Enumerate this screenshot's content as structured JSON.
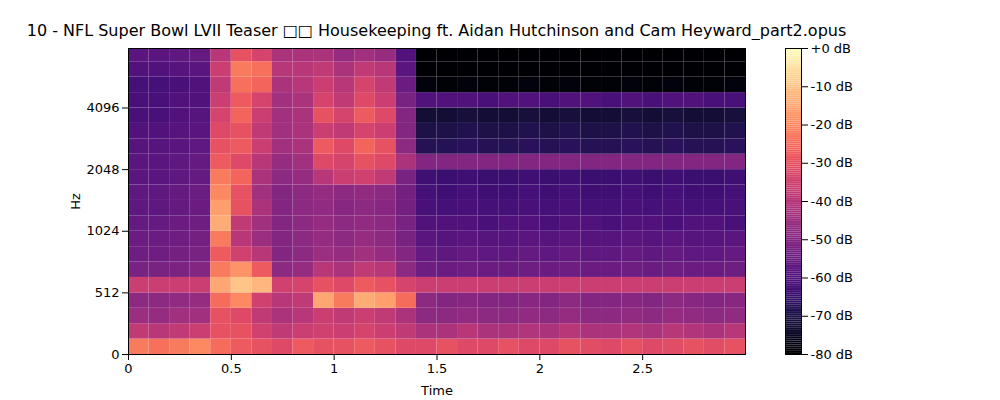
{
  "chart_data": {
    "type": "heatmap",
    "title": "10 - NFL Super Bowl LVII Teaser □□ Housekeeping ft. Aidan Hutchinson and Cam Heyward_part2.opus",
    "x_label": "Time",
    "y_label": "Hz",
    "xlim": [
      0,
      3
    ],
    "xticks": [
      0,
      0.5,
      1,
      1.5,
      2,
      2.5
    ],
    "ylim": [
      0,
      8000
    ],
    "yticks": [
      0,
      512,
      1024,
      2048,
      4096
    ],
    "color": "magma",
    "time_bins": [
      0,
      0.1,
      0.2,
      0.3,
      0.4,
      0.5,
      0.6,
      0.7,
      0.8,
      0.9,
      1.0,
      1.1,
      1.2,
      1.3,
      1.4,
      1.5,
      1.6,
      1.7,
      1.8,
      1.9,
      2.0,
      2.1,
      2.2,
      2.3,
      2.4,
      2.5,
      2.6,
      2.7,
      2.8,
      2.9,
      3.0
    ],
    "freq_bins": [
      0,
      128,
      256,
      384,
      512,
      609,
      724,
      861,
      1024,
      1218,
      1448,
      1722,
      2048,
      2435,
      2896,
      3444,
      4096,
      4871,
      5793,
      6889,
      8000
    ],
    "z": [
      [
        -22,
        -24,
        -22,
        -20,
        -25,
        -28,
        -30,
        -32,
        -28,
        -30,
        -30,
        -28,
        -30,
        -32,
        -32,
        -30,
        -32,
        -32,
        -30,
        -32,
        -32,
        -30,
        -31,
        -32,
        -30,
        -32,
        -31,
        -30,
        -31,
        -30
      ],
      [
        -38,
        -40,
        -38,
        -36,
        -30,
        -30,
        -35,
        -38,
        -36,
        -35,
        -36,
        -34,
        -36,
        -38,
        -42,
        -42,
        -40,
        -42,
        -42,
        -41,
        -42,
        -40,
        -42,
        -42,
        -41,
        -42,
        -40,
        -41,
        -42,
        -40
      ],
      [
        -45,
        -46,
        -44,
        -44,
        -30,
        -32,
        -38,
        -42,
        -40,
        -36,
        -38,
        -36,
        -38,
        -42,
        -48,
        -48,
        -47,
        -48,
        -48,
        -47,
        -48,
        -46,
        -48,
        -48,
        -47,
        -48,
        -46,
        -47,
        -48,
        -47
      ],
      [
        -48,
        -48,
        -47,
        -46,
        -25,
        -20,
        -35,
        -40,
        -38,
        -15,
        -22,
        -14,
        -16,
        -25,
        -48,
        -50,
        -49,
        -50,
        -50,
        -49,
        -50,
        -48,
        -50,
        -50,
        -49,
        -50,
        -48,
        -49,
        -50,
        -49
      ],
      [
        -36,
        -36,
        -36,
        -36,
        -15,
        -10,
        -12,
        -35,
        -34,
        -30,
        -32,
        -28,
        -30,
        -34,
        -36,
        -36,
        -36,
        -36,
        -36,
        -36,
        -36,
        -36,
        -36,
        -36,
        -36,
        -36,
        -36,
        -36,
        -36,
        -36
      ],
      [
        -52,
        -52,
        -51,
        -50,
        -22,
        -18,
        -28,
        -48,
        -46,
        -40,
        -42,
        -38,
        -40,
        -48,
        -54,
        -55,
        -54,
        -55,
        -55,
        -54,
        -55,
        -54,
        -55,
        -55,
        -54,
        -55,
        -54,
        -55,
        -55,
        -54
      ],
      [
        -54,
        -54,
        -53,
        -52,
        -28,
        -35,
        -40,
        -50,
        -48,
        -45,
        -46,
        -44,
        -46,
        -50,
        -56,
        -57,
        -56,
        -57,
        -57,
        -56,
        -57,
        -56,
        -57,
        -57,
        -56,
        -57,
        -56,
        -57,
        -57,
        -56
      ],
      [
        -55,
        -55,
        -54,
        -53,
        -22,
        -40,
        -45,
        -50,
        -48,
        -46,
        -48,
        -46,
        -48,
        -52,
        -58,
        -59,
        -58,
        -59,
        -59,
        -58,
        -59,
        -58,
        -59,
        -59,
        -58,
        -59,
        -58,
        -59,
        -59,
        -58
      ],
      [
        -56,
        -56,
        -55,
        -54,
        -14,
        -38,
        -44,
        -50,
        -48,
        -46,
        -48,
        -47,
        -48,
        -52,
        -60,
        -60,
        -60,
        -61,
        -60,
        -60,
        -61,
        -60,
        -60,
        -61,
        -60,
        -60,
        -61,
        -60,
        -60,
        -61
      ],
      [
        -57,
        -57,
        -56,
        -55,
        -16,
        -30,
        -42,
        -50,
        -48,
        -47,
        -49,
        -48,
        -49,
        -53,
        -61,
        -62,
        -61,
        -62,
        -62,
        -61,
        -62,
        -61,
        -62,
        -62,
        -61,
        -62,
        -61,
        -62,
        -62,
        -61
      ],
      [
        -57,
        -57,
        -56,
        -55,
        -20,
        -30,
        -44,
        -50,
        -48,
        -46,
        -48,
        -47,
        -48,
        -53,
        -62,
        -63,
        -62,
        -63,
        -63,
        -62,
        -63,
        -62,
        -63,
        -63,
        -62,
        -63,
        -62,
        -63,
        -63,
        -62
      ],
      [
        -58,
        -58,
        -57,
        -56,
        -22,
        -26,
        -42,
        -48,
        -46,
        -40,
        -36,
        -35,
        -38,
        -52,
        -63,
        -64,
        -63,
        -64,
        -64,
        -63,
        -64,
        -63,
        -64,
        -64,
        -63,
        -64,
        -63,
        -64,
        -64,
        -63
      ],
      [
        -58,
        -58,
        -57,
        -56,
        -28,
        -32,
        -40,
        -46,
        -44,
        -32,
        -34,
        -30,
        -32,
        -42,
        -50,
        -50,
        -50,
        -50,
        -50,
        -50,
        -50,
        -50,
        -50,
        -50,
        -50,
        -50,
        -50,
        -50,
        -50,
        -50
      ],
      [
        -59,
        -59,
        -58,
        -57,
        -30,
        -28,
        -36,
        -44,
        -42,
        -28,
        -32,
        -26,
        -30,
        -48,
        -68,
        -68,
        -67,
        -68,
        -68,
        -67,
        -68,
        -67,
        -68,
        -68,
        -67,
        -68,
        -67,
        -68,
        -68,
        -67
      ],
      [
        -60,
        -60,
        -59,
        -58,
        -32,
        -30,
        -38,
        -44,
        -42,
        -36,
        -38,
        -34,
        -36,
        -50,
        -70,
        -70,
        -69,
        -70,
        -70,
        -69,
        -70,
        -69,
        -70,
        -70,
        -69,
        -70,
        -69,
        -70,
        -70,
        -69
      ],
      [
        -61,
        -61,
        -60,
        -59,
        -34,
        -26,
        -36,
        -44,
        -42,
        -30,
        -34,
        -28,
        -32,
        -50,
        -72,
        -72,
        -71,
        -72,
        -72,
        -71,
        -72,
        -71,
        -72,
        -72,
        -71,
        -72,
        -71,
        -72,
        -72,
        -71
      ],
      [
        -61,
        -61,
        -60,
        -60,
        -36,
        -28,
        -34,
        -44,
        -42,
        -34,
        -38,
        -32,
        -36,
        -52,
        -60,
        -60,
        -60,
        -61,
        -60,
        -60,
        -61,
        -60,
        -60,
        -61,
        -60,
        -61,
        -60,
        -60,
        -61,
        -61
      ],
      [
        -62,
        -62,
        -61,
        -60,
        -38,
        -24,
        -26,
        -42,
        -40,
        -36,
        -40,
        -34,
        -38,
        -55,
        -78,
        -79,
        -78,
        -79,
        -79,
        -78,
        -79,
        -78,
        -79,
        -79,
        -78,
        -79,
        -78,
        -79,
        -79,
        -78
      ],
      [
        -60,
        -60,
        -59,
        -58,
        -36,
        -22,
        -24,
        -40,
        -40,
        -38,
        -42,
        -38,
        -40,
        -58,
        -80,
        -80,
        -80,
        -80,
        -80,
        -80,
        -80,
        -80,
        -80,
        -80,
        -80,
        -80,
        -80,
        -80,
        -80,
        -80
      ],
      [
        -58,
        -58,
        -57,
        -56,
        -40,
        -30,
        -34,
        -42,
        -42,
        -42,
        -46,
        -44,
        -46,
        -60,
        -80,
        -80,
        -80,
        -80,
        -80,
        -80,
        -80,
        -80,
        -80,
        -80,
        -80,
        -80,
        -80,
        -80,
        -80,
        -80
      ]
    ],
    "colorbar_range": [
      -80,
      0
    ],
    "colorbar_ticks": [
      {
        "value": 0,
        "label": "+0 dB"
      },
      {
        "value": -10,
        "label": "-10 dB"
      },
      {
        "value": -20,
        "label": "-20 dB"
      },
      {
        "value": -30,
        "label": "-30 dB"
      },
      {
        "value": -40,
        "label": "-40 dB"
      },
      {
        "value": -50,
        "label": "-50 dB"
      },
      {
        "value": -60,
        "label": "-60 dB"
      },
      {
        "value": -70,
        "label": "-70 dB"
      },
      {
        "value": -80,
        "label": "-80 dB"
      }
    ]
  }
}
